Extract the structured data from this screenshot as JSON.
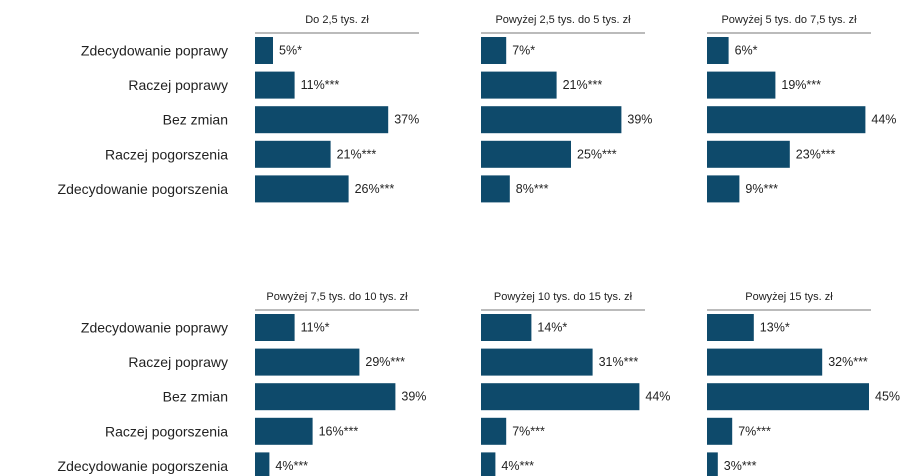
{
  "chart_data": {
    "type": "bar",
    "orientation": "horizontal",
    "categories": [
      "Zdecydowanie poprawy",
      "Raczej poprawy",
      "Bez zmian",
      "Raczej pogorszenia",
      "Zdecydowanie pogorszenia"
    ],
    "bar_color": "#0e4a6b",
    "xlim": [
      0,
      50
    ],
    "panels": [
      {
        "title": "Do 2,5 tys. zł",
        "values": [
          5,
          11,
          37,
          21,
          26
        ],
        "labels": [
          "5%*",
          "11%***",
          "37%",
          "21%***",
          "26%***"
        ]
      },
      {
        "title": "Powyżej 2,5 tys. do 5 tys. zł",
        "values": [
          7,
          21,
          39,
          25,
          8
        ],
        "labels": [
          "7%*",
          "21%***",
          "39%",
          "25%***",
          "8%***"
        ]
      },
      {
        "title": "Powyżej 5 tys. do 7,5 tys. zł",
        "values": [
          6,
          19,
          44,
          23,
          9
        ],
        "labels": [
          "6%*",
          "19%***",
          "44%",
          "23%***",
          "9%***"
        ]
      },
      {
        "title": "Powyżej 7,5 tys.  do 10 tys. zł",
        "values": [
          11,
          29,
          39,
          16,
          4
        ],
        "labels": [
          "11%*",
          "29%***",
          "39%",
          "16%***",
          "4%***"
        ]
      },
      {
        "title": "Powyżej 10 tys. do 15 tys. zł",
        "values": [
          14,
          31,
          44,
          7,
          4
        ],
        "labels": [
          "14%*",
          "31%***",
          "44%",
          "7%***",
          "4%***"
        ]
      },
      {
        "title": "Powyżej 15 tys. zł",
        "values": [
          13,
          32,
          45,
          7,
          3
        ],
        "labels": [
          "13%*",
          "32%***",
          "45%",
          "7%***",
          "3%***"
        ]
      }
    ]
  }
}
